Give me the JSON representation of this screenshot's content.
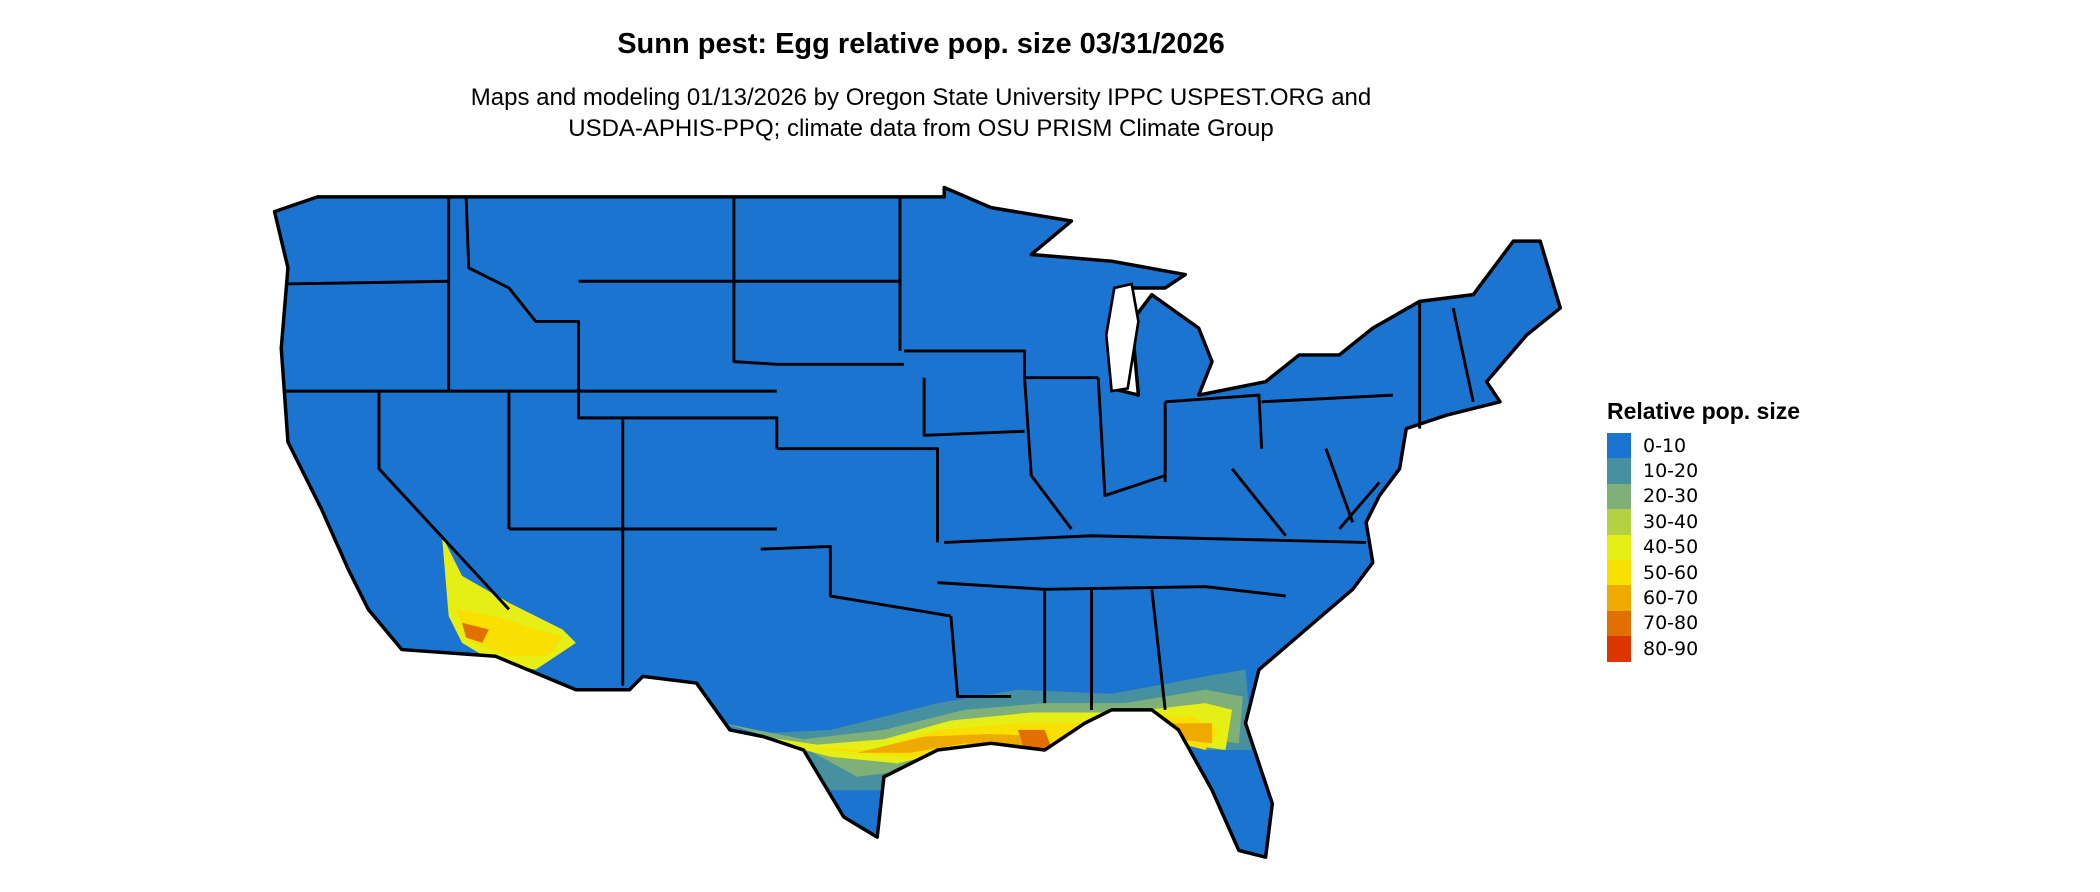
{
  "title": "Sunn pest: Egg relative pop. size 03/31/2026",
  "subtitle_line1": "Maps and modeling 01/13/2026 by Oregon State University IPPC USPEST.ORG and",
  "subtitle_line2": "USDA-APHIS-PPQ; climate data from OSU PRISM Climate Group",
  "legend": {
    "title": "Relative pop. size",
    "items": [
      {
        "label": "0-10",
        "color": "#1b75d0"
      },
      {
        "label": "10-20",
        "color": "#4790a0"
      },
      {
        "label": "20-30",
        "color": "#7fb077"
      },
      {
        "label": "30-40",
        "color": "#b4d144"
      },
      {
        "label": "40-50",
        "color": "#e6ef15"
      },
      {
        "label": "50-60",
        "color": "#f9e000"
      },
      {
        "label": "60-70",
        "color": "#efaa00"
      },
      {
        "label": "70-80",
        "color": "#e27000"
      },
      {
        "label": "80-90",
        "color": "#dc3500"
      }
    ]
  },
  "map": {
    "region": "Contiguous United States",
    "background_class": "0-10",
    "high_areas": [
      "Gulf Coast (TX, LA, MS, AL, FL panhandle, GA south)",
      "Southern California / Arizona desert"
    ]
  }
}
